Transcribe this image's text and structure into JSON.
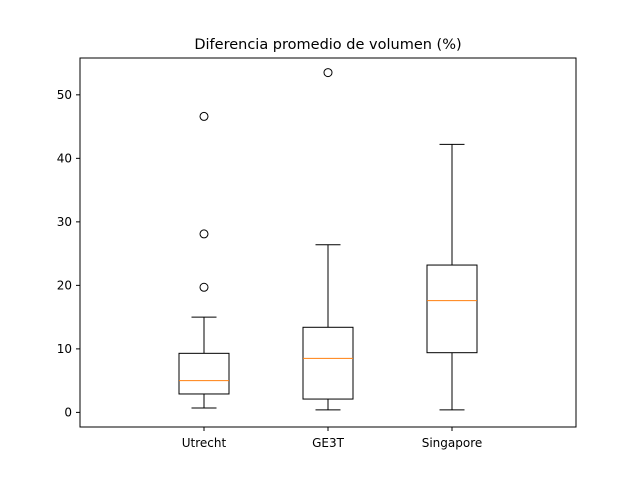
{
  "chart_data": {
    "type": "boxplot",
    "title": "Diferencia promedio de volumen (%)",
    "xlabel": "",
    "ylabel": "",
    "categories": [
      "Utrecht",
      "GE3T",
      "Singapore"
    ],
    "ylim": [
      -2.3,
      55.8
    ],
    "yticks": [
      0,
      10,
      20,
      30,
      40,
      50
    ],
    "grid": false,
    "boxes": [
      {
        "label": "Utrecht",
        "whisker_low": 0.7,
        "q1": 2.9,
        "median": 5.0,
        "q3": 9.3,
        "whisker_high": 15.0,
        "outliers": [
          19.7,
          28.1,
          46.6
        ]
      },
      {
        "label": "GE3T",
        "whisker_low": 0.4,
        "q1": 2.1,
        "median": 8.5,
        "q3": 13.4,
        "whisker_high": 26.4,
        "outliers": [
          53.5
        ]
      },
      {
        "label": "Singapore",
        "whisker_low": 0.4,
        "q1": 9.4,
        "median": 17.6,
        "q3": 23.2,
        "whisker_high": 42.2,
        "outliers": []
      }
    ],
    "colors": {
      "box": "#000000",
      "median": "#ff7f0e",
      "outlier": "#000000"
    }
  }
}
